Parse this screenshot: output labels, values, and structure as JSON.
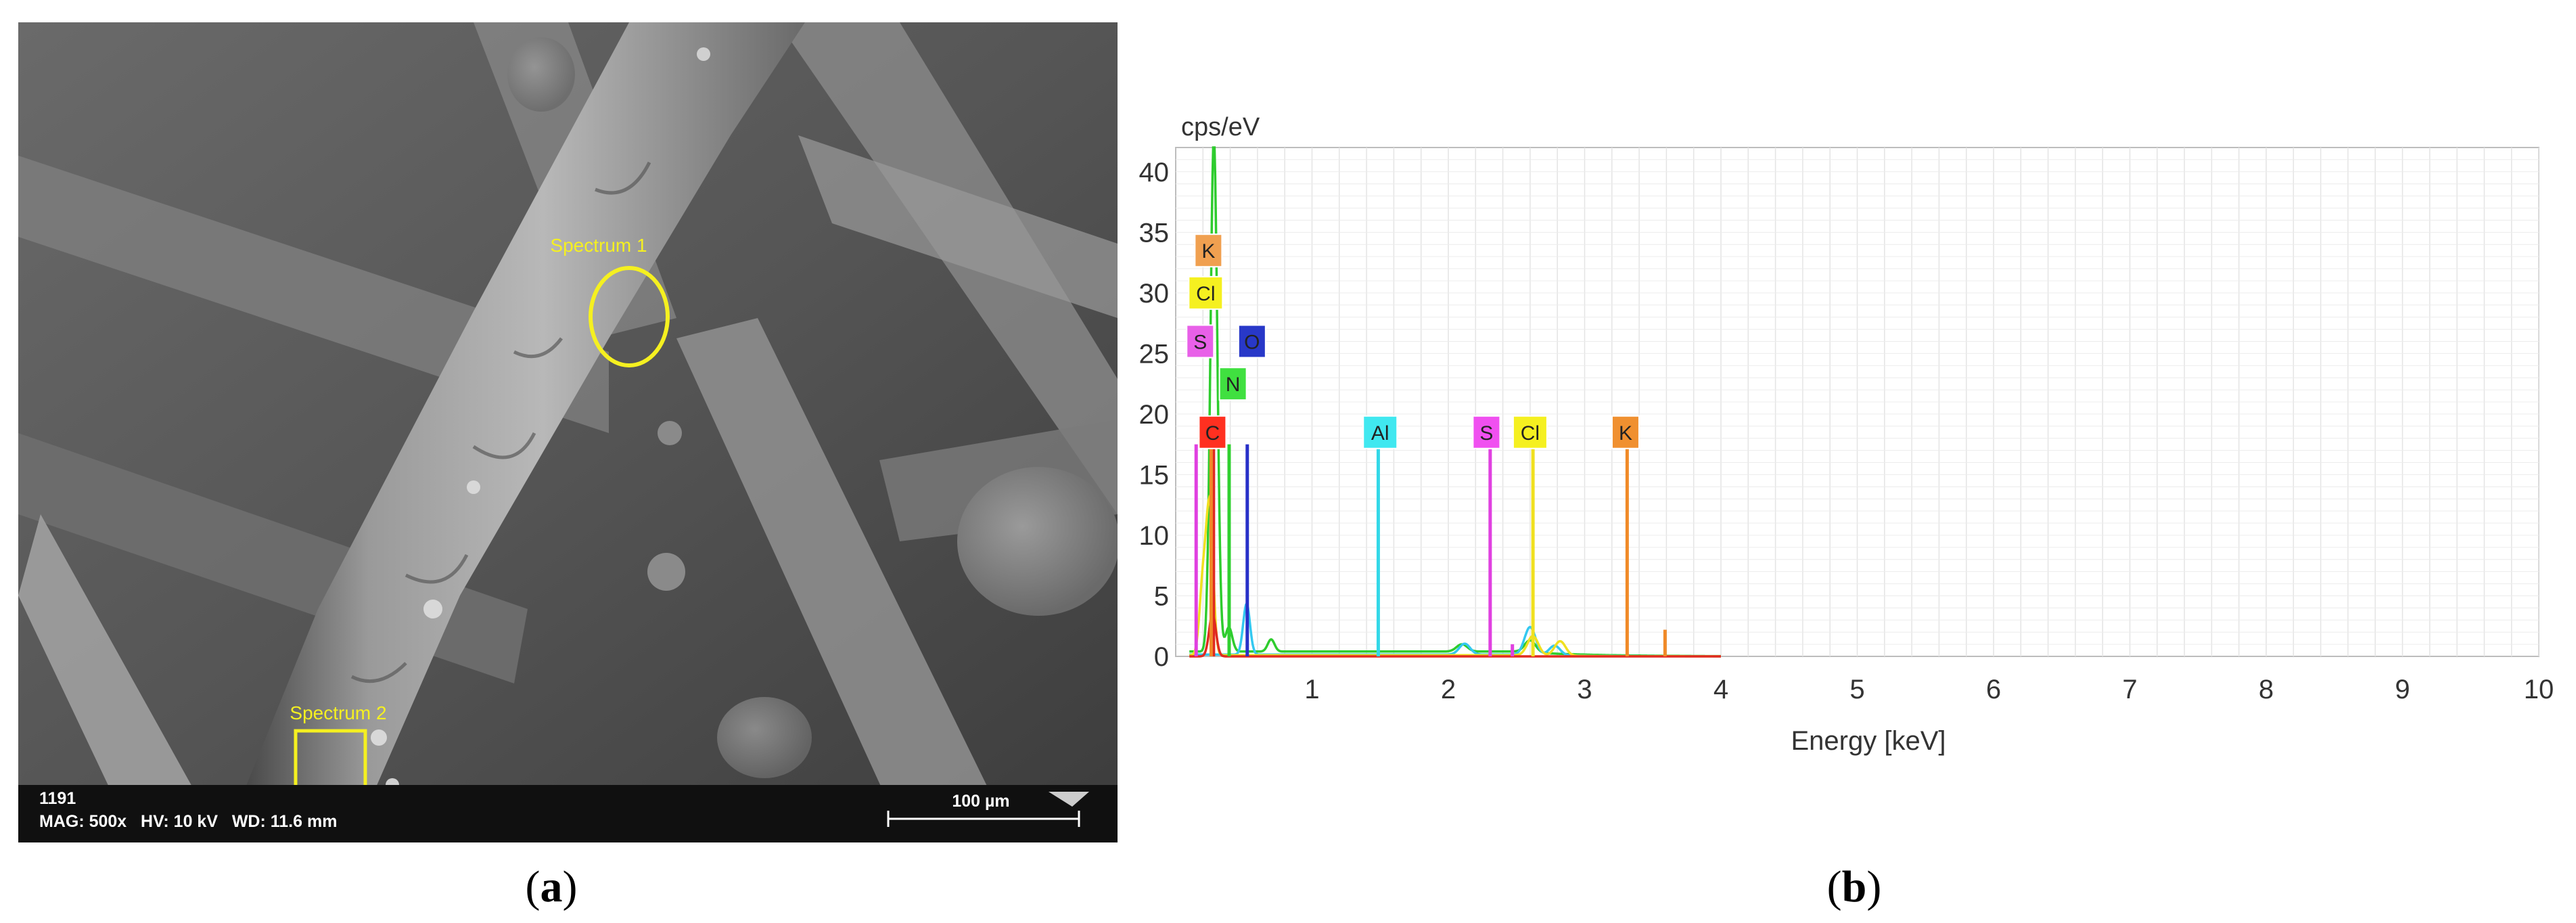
{
  "figure": {
    "panel_a_label": "a",
    "panel_b_label": "b"
  },
  "sem": {
    "spectrum1_label": "Spectrum 1",
    "spectrum2_label": "Spectrum 2",
    "info_id": "1191",
    "info_params": "MAG: 500x   HV: 10 kV   WD: 11.6 mm",
    "scale_bar_label": "100 µm"
  },
  "chart_data": {
    "type": "line",
    "ylabel": "cps/eV",
    "xlabel": "Energy [keV]",
    "xlim": [
      0,
      10
    ],
    "ylim": [
      0,
      42
    ],
    "xticks": [
      1,
      2,
      3,
      4,
      5,
      6,
      7,
      8,
      9,
      10
    ],
    "yticks": [
      0,
      5,
      10,
      15,
      20,
      25,
      30,
      35,
      40
    ],
    "grid": true,
    "series": [
      {
        "color": "#2ecc2e",
        "peaks": [
          [
            0.28,
            42.5
          ],
          [
            0.39,
            2.0
          ],
          [
            0.7,
            1.0
          ],
          [
            2.1,
            0.6
          ],
          [
            2.6,
            1.0
          ]
        ],
        "baseline": 0.4
      },
      {
        "color": "#33c8f0",
        "peaks": [
          [
            0.52,
            4.2
          ],
          [
            2.12,
            0.9
          ],
          [
            2.6,
            2.3
          ],
          [
            2.78,
            0.8
          ]
        ],
        "baseline": 0.15
      },
      {
        "color": "#f0e020",
        "peaks": [
          [
            0.2,
            6.0
          ],
          [
            0.25,
            12.0
          ],
          [
            2.62,
            1.6
          ],
          [
            2.82,
            1.2
          ]
        ],
        "baseline": 0.1
      },
      {
        "color": "#e02a20",
        "peaks": [
          [
            0.27,
            3.5
          ]
        ],
        "baseline": 0.0
      }
    ],
    "element_lines": [
      {
        "element": "S",
        "energy": 0.15,
        "height": 17.5,
        "color": "#e040e0"
      },
      {
        "element": "C",
        "energy": 0.277,
        "height": 17.5,
        "color": "#e02a20"
      },
      {
        "element": "K",
        "energy": 0.26,
        "height": 17.5,
        "color": "#f08a28"
      },
      {
        "element": "N",
        "energy": 0.392,
        "height": 17.5,
        "color": "#30d030"
      },
      {
        "element": "O",
        "energy": 0.525,
        "height": 17.5,
        "color": "#2830c8"
      },
      {
        "element": "Al",
        "energy": 1.486,
        "height": 17.5,
        "color": "#33d8e8"
      },
      {
        "element": "S",
        "energy": 2.307,
        "height": 17.5,
        "color": "#e040e0"
      },
      {
        "element": "Cl",
        "energy": 2.621,
        "height": 17.5,
        "color": "#f0e020"
      },
      {
        "element": "K",
        "energy": 3.312,
        "height": 17.5,
        "color": "#f08a28"
      },
      {
        "element": "",
        "energy": 3.59,
        "height": 2.2,
        "color": "#f08a28"
      },
      {
        "element": "",
        "energy": 2.47,
        "height": 1.0,
        "color": "#e040e0"
      }
    ],
    "element_labels": [
      {
        "text": "K",
        "energy": 0.24,
        "y": 33.5,
        "color": "#f0a050"
      },
      {
        "text": "Cl",
        "energy": 0.22,
        "y": 30.0,
        "color": "#f5f020"
      },
      {
        "text": "S",
        "energy": 0.18,
        "y": 26.0,
        "color": "#e860e8"
      },
      {
        "text": "O",
        "energy": 0.56,
        "y": 26.0,
        "color": "#2838c8"
      },
      {
        "text": "N",
        "energy": 0.42,
        "y": 22.5,
        "color": "#40e040"
      },
      {
        "text": "C",
        "energy": 0.27,
        "y": 18.5,
        "color": "#ff3020"
      },
      {
        "text": "Al",
        "energy": 1.5,
        "y": 18.5,
        "color": "#40e8f0"
      },
      {
        "text": "S",
        "energy": 2.28,
        "y": 18.5,
        "color": "#f050f0"
      },
      {
        "text": "Cl",
        "energy": 2.6,
        "y": 18.5,
        "color": "#f5f020"
      },
      {
        "text": "K",
        "energy": 3.3,
        "y": 18.5,
        "color": "#f09030"
      }
    ]
  }
}
